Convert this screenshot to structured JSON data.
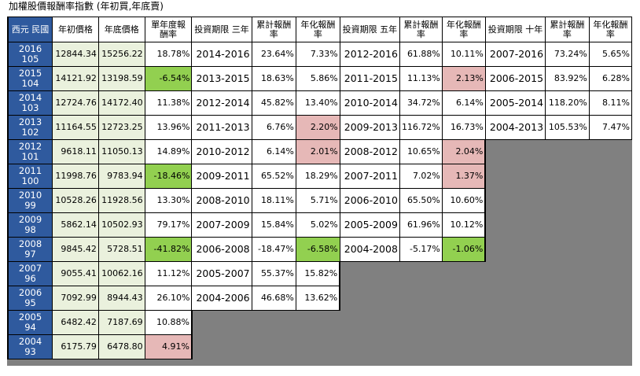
{
  "title": "加權股價報酬率指數 (年初買,年底賣)",
  "headers": [
    "西元 民國",
    "年初價格",
    "年底價格",
    "單年度報酬率",
    "投資期限 三年",
    "累計報酬率",
    "年化報酬率",
    "投資期限 五年",
    "累計報酬率",
    "年化報酬率",
    "投資期限 十年",
    "累計報酬率",
    "年化報酬率"
  ],
  "rows": [
    {
      "y": "2016",
      "m": "105",
      "open": "12844.34",
      "close": "15256.22",
      "ret": "18.78%",
      "p3": "2014-2016",
      "c3": "23.64%",
      "a3": "7.33%",
      "p5": "2012-2016",
      "c5": "61.88%",
      "a5": "10.11%",
      "p10": "2007-2016",
      "c10": "73.24%",
      "a10": "5.65%"
    },
    {
      "y": "2015",
      "m": "104",
      "open": "14121.92",
      "close": "13198.59",
      "ret": "-6.54%",
      "p3": "2013-2015",
      "c3": "18.63%",
      "a3": "5.86%",
      "p5": "2011-2015",
      "c5": "11.13%",
      "a5": "2.13%",
      "p10": "2006-2015",
      "c10": "83.92%",
      "a10": "6.28%"
    },
    {
      "y": "2014",
      "m": "103",
      "open": "12724.76",
      "close": "14172.40",
      "ret": "11.38%",
      "p3": "2012-2014",
      "c3": "45.82%",
      "a3": "13.40%",
      "p5": "2010-2014",
      "c5": "34.72%",
      "a5": "6.14%",
      "p10": "2005-2014",
      "c10": "118.20%",
      "a10": "8.11%"
    },
    {
      "y": "2013",
      "m": "102",
      "open": "11164.55",
      "close": "12723.25",
      "ret": "13.96%",
      "p3": "2011-2013",
      "c3": "6.76%",
      "a3": "2.20%",
      "p5": "2009-2013",
      "c5": "116.72%",
      "a5": "16.73%",
      "p10": "2004-2013",
      "c10": "105.53%",
      "a10": "7.47%"
    },
    {
      "y": "2012",
      "m": "101",
      "open": "9618.11",
      "close": "11050.13",
      "ret": "14.89%",
      "p3": "2010-2012",
      "c3": "6.14%",
      "a3": "2.01%",
      "p5": "2008-2012",
      "c5": "10.65%",
      "a5": "2.04%"
    },
    {
      "y": "2011",
      "m": "100",
      "open": "11998.76",
      "close": "9783.94",
      "ret": "-18.46%",
      "p3": "2009-2011",
      "c3": "65.52%",
      "a3": "18.29%",
      "p5": "2007-2011",
      "c5": "7.02%",
      "a5": "1.37%"
    },
    {
      "y": "2010",
      "m": "99",
      "open": "10528.26",
      "close": "11928.56",
      "ret": "13.30%",
      "p3": "2008-2010",
      "c3": "18.11%",
      "a3": "5.71%",
      "p5": "2006-2010",
      "c5": "65.50%",
      "a5": "10.60%"
    },
    {
      "y": "2009",
      "m": "98",
      "open": "5862.14",
      "close": "10502.93",
      "ret": "79.17%",
      "p3": "2007-2009",
      "c3": "15.84%",
      "a3": "5.02%",
      "p5": "2005-2009",
      "c5": "61.96%",
      "a5": "10.12%"
    },
    {
      "y": "2008",
      "m": "97",
      "open": "9845.42",
      "close": "5728.51",
      "ret": "-41.82%",
      "p3": "2006-2008",
      "c3": "-18.47%",
      "a3": "-6.58%",
      "p5": "2004-2008",
      "c5": "-5.17%",
      "a5": "-1.06%"
    },
    {
      "y": "2007",
      "m": "96",
      "open": "9055.41",
      "close": "10062.16",
      "ret": "11.12%",
      "p3": "2005-2007",
      "c3": "55.37%",
      "a3": "15.82%"
    },
    {
      "y": "2006",
      "m": "95",
      "open": "7092.99",
      "close": "8944.43",
      "ret": "26.10%",
      "p3": "2004-2006",
      "c3": "46.68%",
      "a3": "13.62%"
    },
    {
      "y": "2005",
      "m": "94",
      "open": "6482.42",
      "close": "7187.69",
      "ret": "10.88%"
    },
    {
      "y": "2004",
      "m": "93",
      "open": "6175.79",
      "close": "6478.80",
      "ret": "4.91%"
    }
  ],
  "colors": {
    "year_cell": "#2f5a9e",
    "price_cell": "#eaf1dd",
    "highlight_green": "#92d050",
    "highlight_pink": "#e6b8b7",
    "filler": "#808080"
  }
}
